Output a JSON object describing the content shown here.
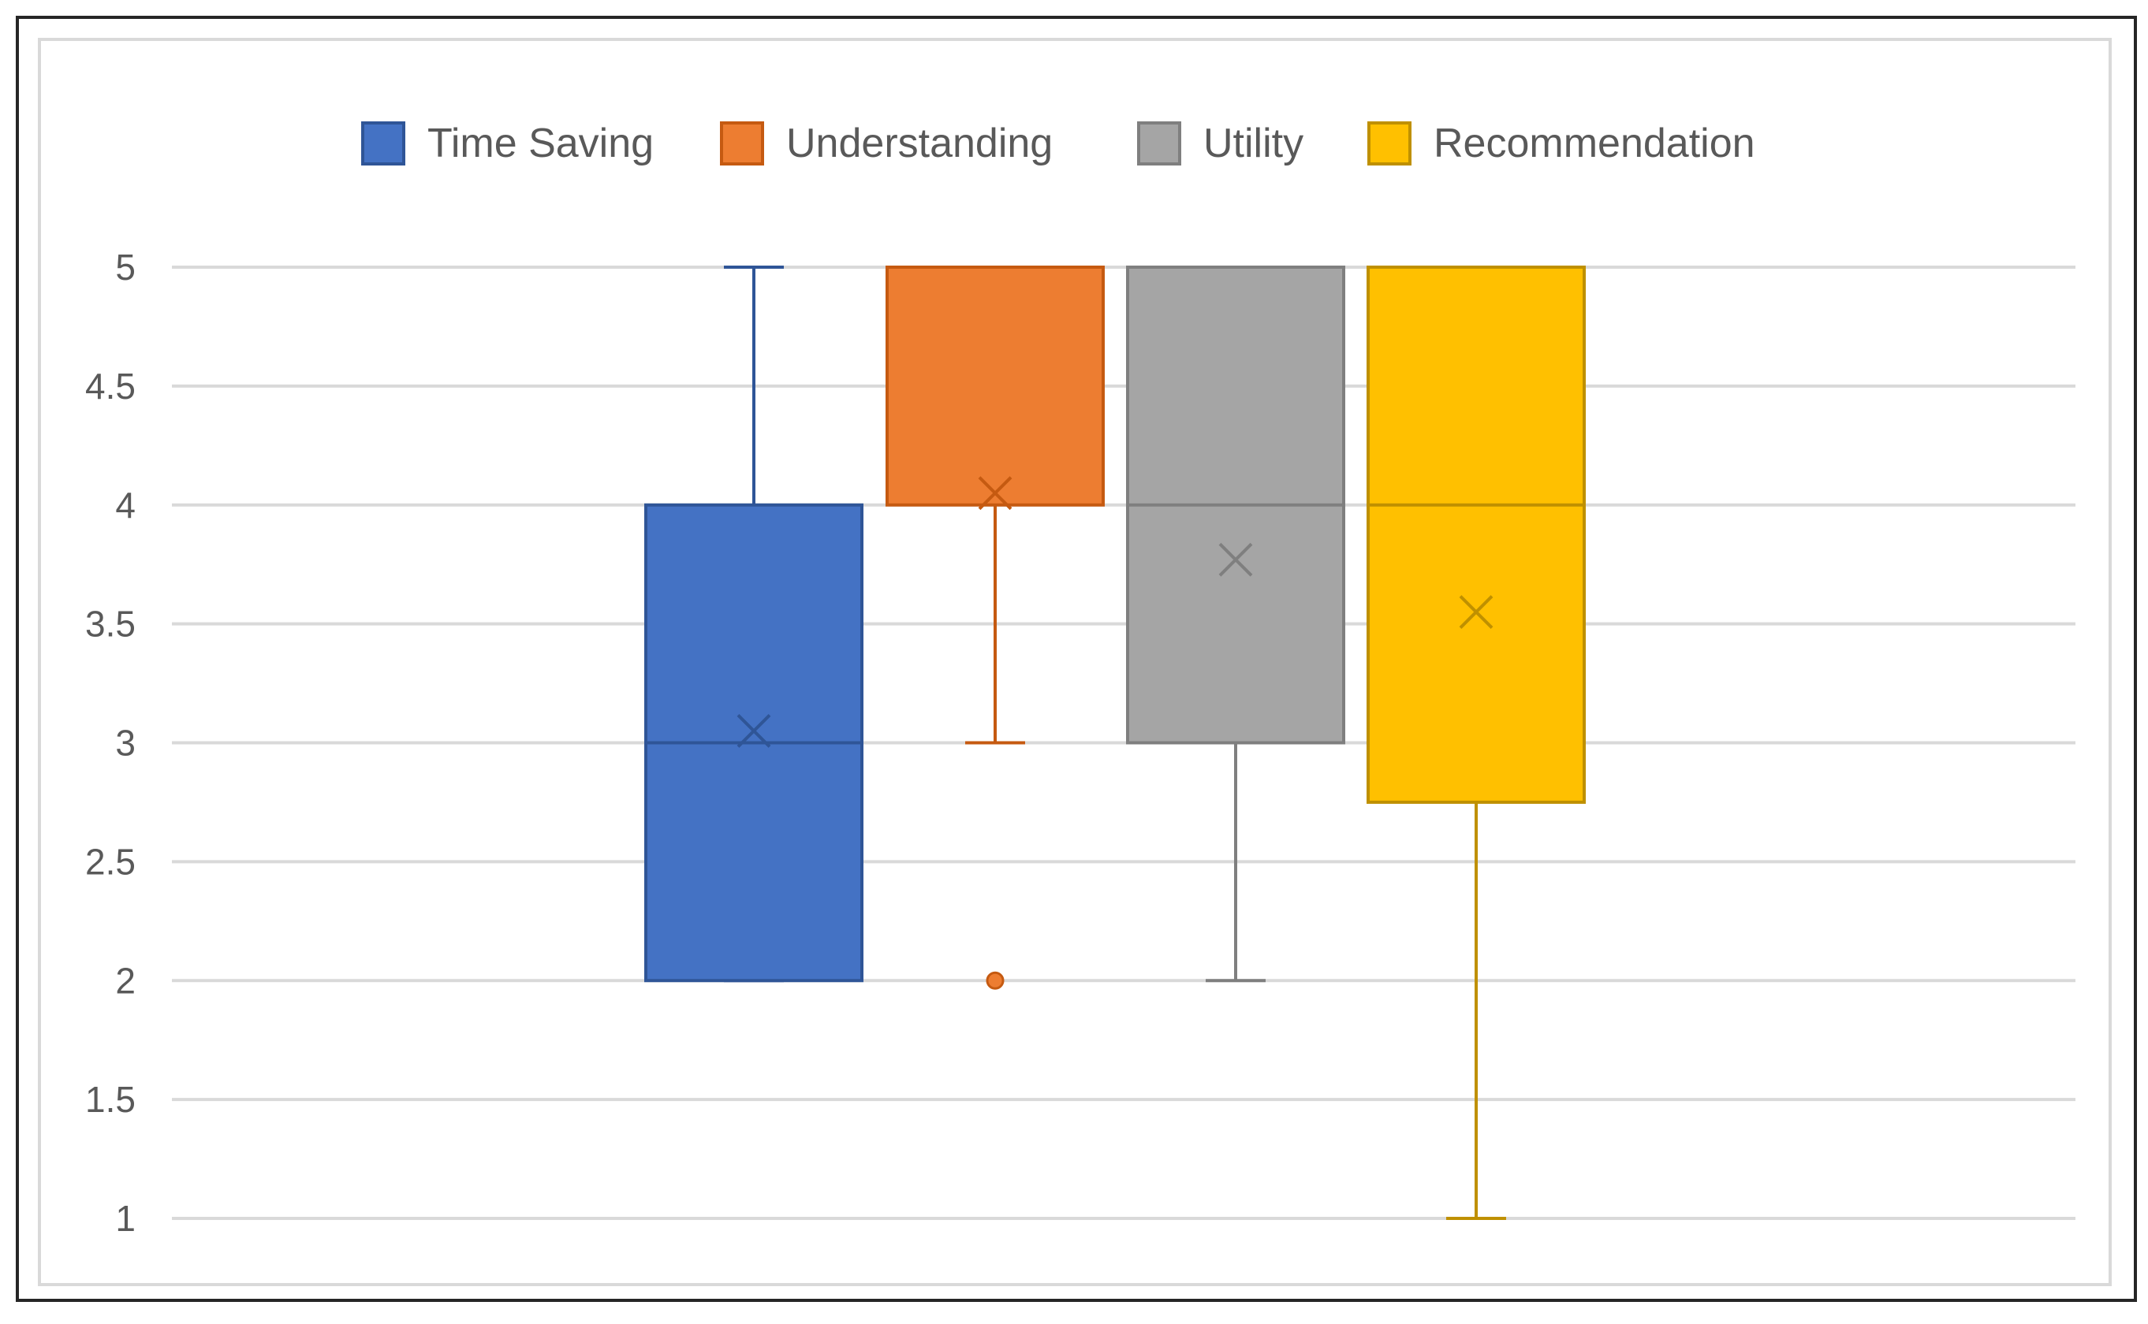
{
  "chart_data": {
    "type": "boxplot",
    "title": "",
    "xlabel": "",
    "ylabel": "",
    "ylim": [
      1,
      5
    ],
    "yticks": [
      "1",
      "1.5",
      "2",
      "2.5",
      "3",
      "3.5",
      "4",
      "4.5",
      "5"
    ],
    "grid": true,
    "legend_position": "top",
    "series": [
      {
        "name": "Time Saving",
        "color": "#4472c4",
        "stroke": "#2f5597",
        "min": 2,
        "q1": 2,
        "median": 3,
        "q3": 4,
        "max": 5,
        "mean": 3.05,
        "outliers": []
      },
      {
        "name": "Understanding",
        "color": "#ed7d31",
        "stroke": "#c55a11",
        "min": 3,
        "q1": 4,
        "median": 5,
        "q3": 5,
        "max": 5,
        "mean": 4.05,
        "outliers": [
          2
        ]
      },
      {
        "name": "Utility",
        "color": "#a5a5a5",
        "stroke": "#7f7f7f",
        "min": 2,
        "q1": 3,
        "median": 4,
        "q3": 5,
        "max": 5,
        "mean": 3.77,
        "outliers": []
      },
      {
        "name": "Recommendation",
        "color": "#ffc000",
        "stroke": "#bf9000",
        "min": 1,
        "q1": 2.75,
        "median": 4,
        "q3": 5,
        "max": 5,
        "mean": 3.55,
        "outliers": []
      }
    ]
  }
}
